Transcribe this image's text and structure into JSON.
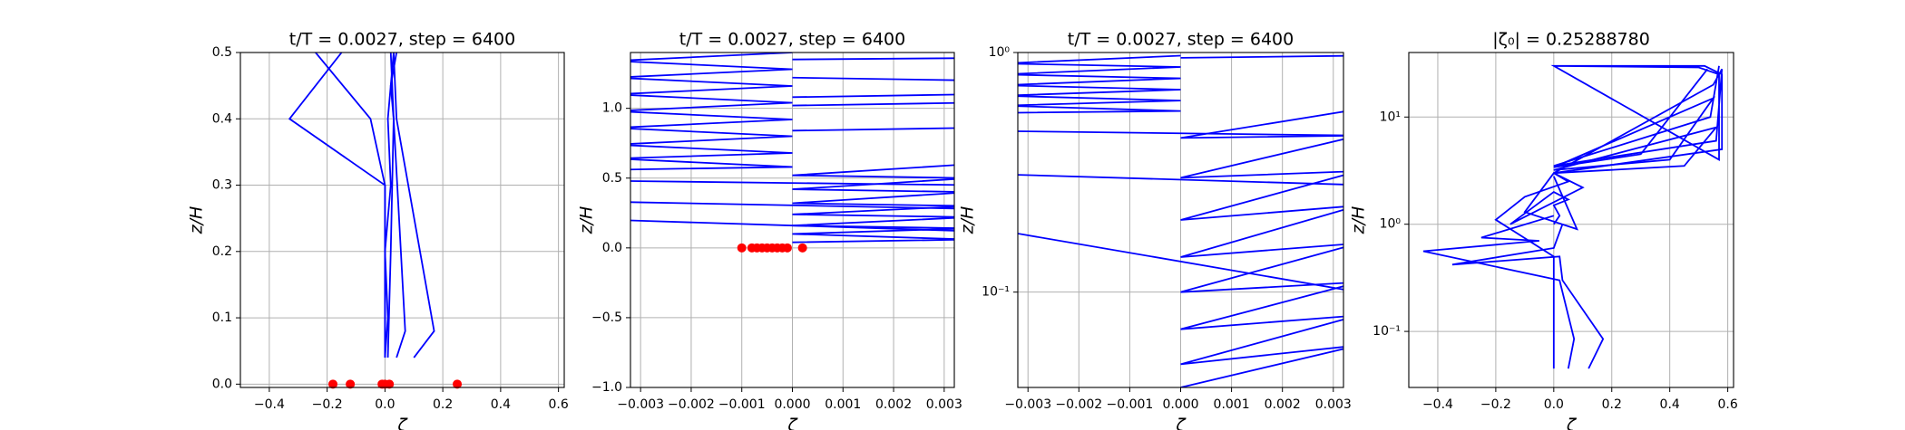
{
  "chart_data": [
    {
      "type": "line",
      "title": "t/T = 0.0027, step = 6400",
      "xlabel": "ζ",
      "ylabel": "z/H",
      "xlim": [
        -0.5,
        0.62
      ],
      "ylim": [
        -0.005,
        0.5
      ],
      "ylog": false,
      "grid": true,
      "xticks": [
        {
          "value": -0.4,
          "label": "−0.4"
        },
        {
          "value": -0.2,
          "label": "−0.2"
        },
        {
          "value": 0,
          "label": "0.0"
        },
        0.2,
        0.4,
        0.6
      ],
      "yticks": [
        {
          "value": 0,
          "label": "0.0"
        },
        0.1,
        0.2,
        0.3,
        0.4,
        0.5
      ],
      "series": [
        {
          "color": "#0000ff",
          "x": [
            0.1,
            0.17,
            0.04,
            0.03
          ],
          "values": [
            0.04,
            0.08,
            0.4,
            0.5
          ]
        },
        {
          "color": "#0000ff",
          "x": [
            0.04,
            0.07,
            0.03,
            0.02
          ],
          "values": [
            0.04,
            0.08,
            0.4,
            0.5
          ]
        },
        {
          "color": "#0000ff",
          "x": [
            0,
            0,
            -0.33,
            -0.15
          ],
          "values": [
            0.04,
            0.3,
            0.4,
            0.5
          ]
        },
        {
          "color": "#0000ff",
          "x": [
            0,
            0,
            -0.05,
            -0.24
          ],
          "values": [
            0.04,
            0.3,
            0.4,
            0.5
          ]
        },
        {
          "color": "#0000ff",
          "x": [
            0.01,
            0.02,
            0.03,
            0.02,
            0.04
          ],
          "values": [
            0.04,
            0.2,
            0.4,
            0.45,
            0.5
          ]
        },
        {
          "color": "#0000ff",
          "x": [
            0.0,
            0.01,
            0.0,
            0.02,
            0.01,
            0.03
          ],
          "values": [
            0.04,
            0.1,
            0.2,
            0.3,
            0.4,
            0.5
          ]
        }
      ],
      "markers": {
        "color": "#ff0000",
        "x": [
          -0.18,
          -0.12,
          -0.01,
          0.0,
          0.015,
          0.25
        ],
        "values": [
          0,
          0,
          0,
          0,
          0,
          0
        ]
      }
    },
    {
      "type": "line",
      "title": "t/T = 0.0027, step = 6400",
      "xlabel": "ζ",
      "ylabel": "z/H",
      "xlim": [
        -0.0032,
        0.0032
      ],
      "ylim": [
        -1.0,
        1.4
      ],
      "ylog": false,
      "grid": true,
      "xticks": [
        {
          "value": -0.003,
          "label": "−0.003"
        },
        {
          "value": -0.002,
          "label": "−0.002"
        },
        {
          "value": -0.001,
          "label": "−0.001"
        },
        {
          "value": 0,
          "label": "0.000"
        },
        0.001,
        0.002,
        0.003
      ],
      "yticks": [
        {
          "value": -1.0,
          "label": "−1.0"
        },
        {
          "value": -0.5,
          "label": "−0.5"
        },
        {
          "value": 0,
          "label": "0.0"
        },
        0.5,
        {
          "value": 1.0,
          "label": "1.0"
        }
      ],
      "series": [
        {
          "color": "#0000ff",
          "x": [
            -0.0035,
            0,
            -0.0035,
            0,
            -0.0035,
            0,
            -0.0035,
            0,
            -0.0035,
            0,
            -0.0035,
            0,
            -0.0035,
            0,
            -0.0035,
            0
          ],
          "values": [
            0.56,
            0.58,
            0.64,
            0.68,
            0.74,
            0.8,
            0.86,
            0.92,
            0.98,
            1.04,
            1.1,
            1.16,
            1.22,
            1.28,
            1.34,
            1.4
          ]
        },
        {
          "color": "#0000ff",
          "x": [
            0,
            0.0035,
            0,
            0.0035,
            0,
            0.0035,
            0,
            0.0035,
            0,
            0.0035,
            0,
            0.0035,
            0,
            0.0035
          ],
          "values": [
            0.04,
            0.06,
            0.1,
            0.14,
            0.16,
            0.22,
            0.24,
            0.3,
            0.32,
            0.4,
            0.42,
            0.5,
            0.52,
            0.6
          ]
        },
        {
          "color": "#0000ff",
          "x": [
            -0.0035,
            0.0035
          ],
          "values": [
            0.2,
            0.12
          ]
        },
        {
          "color": "#0000ff",
          "x": [
            -0.0035,
            0.0035
          ],
          "values": [
            0.33,
            0.28
          ]
        },
        {
          "color": "#0000ff",
          "x": [
            -0.0035,
            0.0035
          ],
          "values": [
            0.48,
            0.45
          ]
        },
        {
          "color": "#0000ff",
          "x": [
            0,
            0.0035
          ],
          "values": [
            0.84,
            0.86
          ]
        },
        {
          "color": "#0000ff",
          "x": [
            0,
            0.0035
          ],
          "values": [
            1.02,
            1.04
          ]
        },
        {
          "color": "#0000ff",
          "x": [
            0,
            0.0035
          ],
          "values": [
            1.08,
            1.1
          ]
        },
        {
          "color": "#0000ff",
          "x": [
            0,
            0.0035
          ],
          "values": [
            1.22,
            1.2
          ]
        },
        {
          "color": "#0000ff",
          "x": [
            0,
            0.0035
          ],
          "values": [
            1.35,
            1.36
          ]
        }
      ],
      "markers": {
        "color": "#ff0000",
        "x": [
          -0.001,
          -0.0008,
          -0.0007,
          -0.0006,
          -0.0005,
          -0.0004,
          -0.0003,
          -0.0002,
          -0.0001,
          0.0002
        ],
        "values": [
          0,
          0,
          0,
          0,
          0,
          0,
          0,
          0,
          0,
          0
        ]
      }
    },
    {
      "type": "line",
      "title": "t/T = 0.0027, step = 6400",
      "xlabel": "ζ",
      "ylabel": "z/H",
      "xlim": [
        -0.0032,
        0.0032
      ],
      "ylim": [
        0.04,
        1
      ],
      "ylog": true,
      "grid": true,
      "xticks": [
        {
          "value": -0.003,
          "label": "−0.003"
        },
        {
          "value": -0.002,
          "label": "−0.002"
        },
        {
          "value": -0.001,
          "label": "−0.001"
        },
        {
          "value": 0,
          "label": "0.000"
        },
        0.001,
        0.002,
        0.003
      ],
      "yticks": [
        {
          "value": 0.1,
          "label": "10⁻¹"
        },
        {
          "value": 1,
          "label": "10⁰"
        }
      ],
      "series": [
        {
          "color": "#0000ff",
          "x": [
            -0.0035,
            0,
            -0.0035,
            0,
            -0.0035,
            0,
            -0.0035,
            0,
            -0.0035,
            0,
            -0.0035,
            0
          ],
          "values": [
            0.56,
            0.57,
            0.6,
            0.63,
            0.66,
            0.7,
            0.73,
            0.78,
            0.81,
            0.87,
            0.9,
            0.97
          ]
        },
        {
          "color": "#0000ff",
          "x": [
            0,
            0.0035,
            0,
            0.0035,
            0,
            0.0035,
            0,
            0.0035,
            0,
            0.0035,
            0,
            0.0035,
            0,
            0.0035,
            0,
            0.0035
          ],
          "values": [
            0.04,
            0.06,
            0.05,
            0.08,
            0.07,
            0.11,
            0.1,
            0.16,
            0.14,
            0.23,
            0.2,
            0.32,
            0.3,
            0.45,
            0.44,
            0.58
          ]
        },
        {
          "color": "#0000ff",
          "x": [
            -0.0035,
            0.0035
          ],
          "values": [
            0.18,
            0.1
          ]
        },
        {
          "color": "#0000ff",
          "x": [
            -0.0035,
            0.0035
          ],
          "values": [
            0.31,
            0.28
          ]
        },
        {
          "color": "#0000ff",
          "x": [
            -0.0035,
            0.0035
          ],
          "values": [
            0.47,
            0.45
          ]
        },
        {
          "color": "#0000ff",
          "x": [
            0,
            0.0035
          ],
          "values": [
            0.95,
            0.97
          ]
        }
      ]
    },
    {
      "type": "line",
      "title": "|ζ₀| = 0.25288780",
      "xlabel": "ζ",
      "ylabel": "z/H",
      "xlim": [
        -0.5,
        0.62
      ],
      "ylim": [
        0.03,
        40
      ],
      "ylog": true,
      "grid": true,
      "xticks": [
        {
          "value": -0.4,
          "label": "−0.4"
        },
        {
          "value": -0.2,
          "label": "−0.2"
        },
        {
          "value": 0,
          "label": "0.0"
        },
        0.2,
        0.4,
        0.6
      ],
      "yticks": [
        {
          "value": 0.1,
          "label": "10⁻¹"
        },
        {
          "value": 1,
          "label": "10⁰"
        },
        {
          "value": 10,
          "label": "10¹"
        }
      ],
      "series": [
        {
          "color": "#0000ff",
          "x": [
            0.12,
            0.17,
            0.03,
            0.02,
            -0.35,
            0.0,
            0.03
          ],
          "values": [
            0.045,
            0.085,
            0.3,
            0.5,
            0.42,
            0.6,
            1.0
          ]
        },
        {
          "color": "#0000ff",
          "x": [
            0.05,
            0.07,
            0.02,
            -0.45,
            -0.05,
            -0.25,
            0.0
          ],
          "values": [
            0.045,
            0.085,
            0.3,
            0.56,
            0.7,
            0.75,
            1.2
          ]
        },
        {
          "color": "#0000ff",
          "x": [
            0.0,
            0.0,
            -0.2,
            -0.1,
            0.05,
            0.0
          ],
          "values": [
            0.045,
            0.5,
            1.1,
            1.8,
            2.5,
            3
          ]
        },
        {
          "color": "#0000ff",
          "x": [
            0.0,
            0.02,
            0.0,
            0.05,
            0.0,
            -0.15,
            0.1,
            0.0,
            -0.1,
            0.08,
            0.0
          ],
          "values": [
            1,
            1.2,
            1.5,
            1.7,
            2,
            1.0,
            2.2,
            3,
            1.3,
            0.9,
            2.8
          ]
        },
        {
          "color": "#0000ff",
          "x": [
            0,
            0.5,
            0.57,
            0.57,
            0,
            0.52,
            0.58,
            0.58,
            0,
            0.55,
            0.58,
            0.56,
            0,
            0.54,
            0.57
          ],
          "values": [
            30,
            29,
            25,
            4,
            30,
            30,
            25,
            5,
            3,
            20,
            28,
            6,
            3.5,
            10,
            30
          ]
        },
        {
          "color": "#0000ff",
          "x": [
            0,
            0.45,
            0.56,
            0,
            0.4,
            0.55,
            0,
            0.3,
            0.53
          ],
          "values": [
            3,
            3.5,
            8,
            3.2,
            4,
            15,
            3.4,
            4.5,
            28
          ]
        }
      ]
    }
  ]
}
